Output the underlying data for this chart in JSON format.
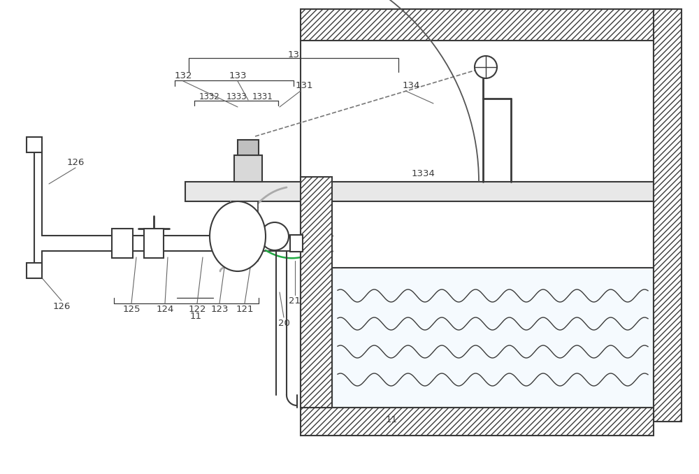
{
  "bg_color": "#ffffff",
  "lc": "#3a3a3a",
  "gray": "#aaaaaa",
  "light_gray": "#cccccc",
  "fig_w": 10.0,
  "fig_h": 6.78,
  "dpi": 100
}
